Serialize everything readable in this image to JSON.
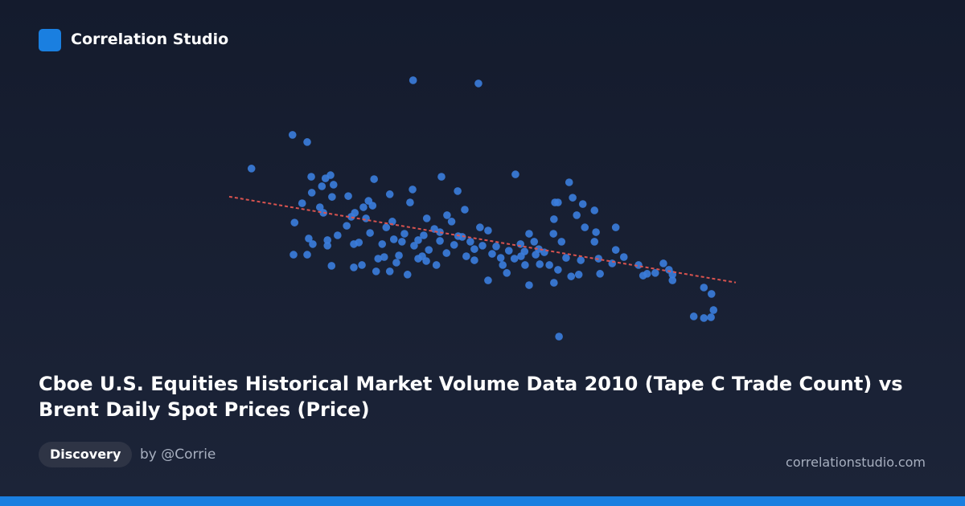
{
  "brand": "Correlation Studio",
  "tag": "Discovery",
  "author": "by @Corrie",
  "site": "correlationstudio.com",
  "chart_data": {
    "type": "scatter",
    "title": "Cboe U.S. Equities Historical Market Volume Data 2010 (Tape C Trade Count) vs Brent Daily Spot Prices (Price)",
    "color": "#3b7ddd",
    "trendline": true,
    "trend_color": "#d9534f",
    "xlim": [
      0,
      100
    ],
    "ylim": [
      0,
      100
    ],
    "x": [
      4.4,
      12.5,
      15.4,
      36.3,
      49.2,
      16.2,
      19.0,
      20.0,
      20.6,
      18.3,
      14.4,
      16.3,
      20.3,
      23.5,
      17.9,
      18.6,
      12.9,
      12.7,
      15.4,
      15.7,
      16.5,
      19.4,
      19.4,
      20.2,
      21.4,
      23.2,
      24.1,
      24.8,
      26.5,
      27.5,
      28.6,
      28.3,
      24.6,
      25.6,
      24.6,
      26.2,
      29.4,
      29.0,
      30.2,
      31.0,
      31.7,
      32.2,
      32.5,
      31.7,
      33.5,
      34.6,
      35.2,
      36.2,
      35.7,
      36.5,
      37.3,
      38.4,
      39.0,
      40.5,
      40.9,
      41.9,
      43.0,
      43.9,
      45.1,
      45.2,
      46.5,
      46.8,
      47.6,
      48.4,
      49.5,
      50.0,
      51.1,
      51.1,
      52.7,
      53.6,
      54.8,
      55.2,
      56.5,
      57.5,
      57.6,
      58.4,
      59.2,
      59.2,
      60.2,
      60.5,
      61.3,
      62.2,
      63.2,
      64.0,
      64.1,
      64.3,
      64.9,
      64.1,
      64.9,
      65.1,
      65.6,
      66.5,
      67.1,
      67.8,
      68.6,
      69.4,
      69.8,
      70.2,
      67.5,
      69.0,
      72.1,
      72.4,
      72.1,
      72.9,
      73.2,
      75.6,
      76.3,
      76.3,
      77.9,
      80.8,
      81.7,
      82.5,
      84.1,
      85.7,
      86.8,
      87.5,
      87.5,
      93.7,
      95.2,
      95.6,
      91.7,
      93.7,
      95.1,
      30.6,
      33.0,
      34.1,
      38.1,
      39.4,
      41.6,
      42.9,
      44.4,
      46.0,
      48.4,
      51.9,
      54.0,
      56.3,
      58.3,
      61.1,
      38.9,
      41.6,
      37.3,
      27.8,
      27.0
    ],
    "y": [
      65.2,
      77.9,
      75.2,
      98.5,
      97.3,
      62.1,
      61.5,
      62.7,
      59.1,
      58.5,
      52.1,
      56.1,
      54.5,
      54.8,
      50.6,
      48.5,
      44.8,
      32.7,
      32.7,
      38.8,
      36.7,
      38.2,
      36.1,
      28.5,
      40.0,
      43.6,
      47.0,
      48.5,
      50.6,
      53.0,
      61.2,
      51.2,
      36.7,
      37.3,
      27.9,
      28.8,
      31.2,
      26.4,
      36.7,
      43.0,
      55.5,
      45.2,
      38.5,
      26.4,
      32.4,
      40.6,
      25.2,
      57.3,
      52.4,
      36.1,
      31.2,
      40.0,
      46.4,
      42.4,
      28.8,
      62.1,
      47.6,
      45.2,
      56.7,
      39.7,
      49.7,
      32.1,
      37.6,
      30.6,
      43.0,
      36.1,
      41.8,
      23.0,
      35.8,
      31.5,
      25.8,
      34.2,
      63.0,
      36.7,
      32.1,
      28.8,
      40.6,
      21.2,
      37.6,
      32.7,
      29.1,
      33.6,
      28.8,
      40.6,
      46.1,
      52.4,
      52.4,
      22.1,
      27.0,
      1.8,
      37.6,
      31.5,
      60.0,
      54.2,
      47.6,
      30.6,
      51.8,
      43.0,
      24.5,
      25.2,
      49.4,
      41.2,
      37.6,
      31.2,
      25.5,
      29.4,
      43.0,
      34.5,
      31.8,
      28.8,
      24.8,
      25.5,
      25.8,
      29.4,
      27.0,
      25.2,
      23.0,
      20.3,
      17.9,
      11.8,
      9.4,
      8.8,
      9.1,
      31.8,
      29.7,
      37.6,
      32.1,
      34.5,
      37.9,
      33.3,
      36.4,
      39.4,
      34.8,
      33.0,
      28.8,
      31.2,
      33.9,
      34.8,
      30.3,
      41.2,
      38.2,
      40.9,
      46.4
    ]
  }
}
